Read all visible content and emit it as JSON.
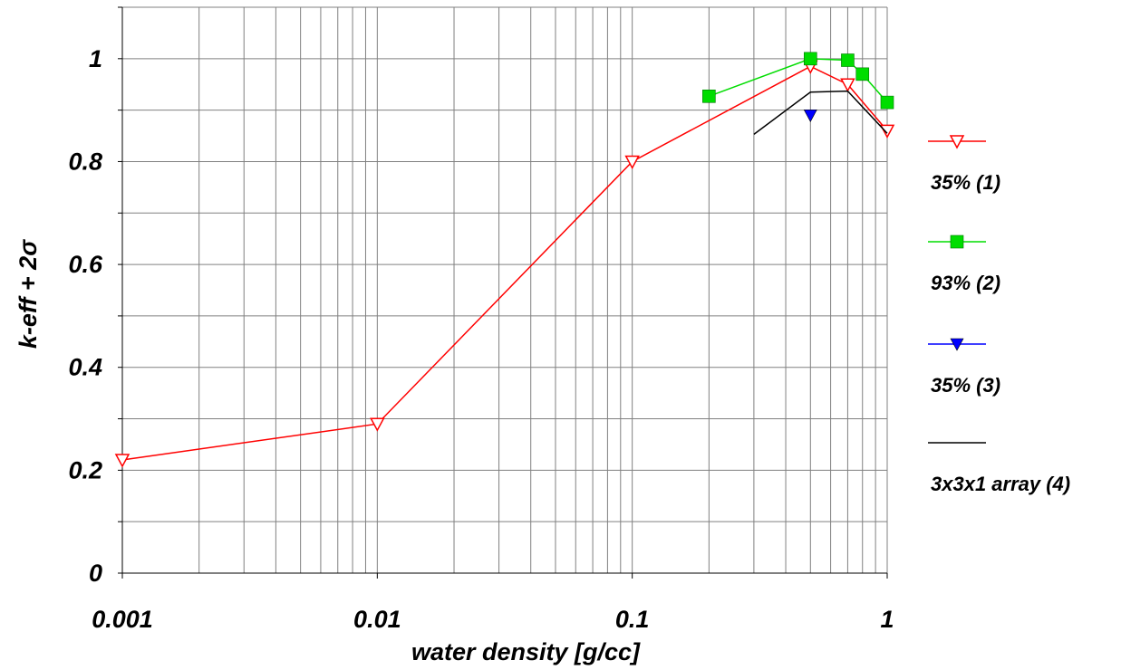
{
  "chart_data": {
    "type": "line",
    "xlabel": "water density [g/cc]",
    "ylabel": "k-eff + 2σ",
    "x_scale": "log",
    "xlim": [
      0.001,
      1
    ],
    "ylim": [
      0,
      1.1
    ],
    "grid": true,
    "legend_position": "right",
    "x_ticks": [
      {
        "value": 0.001,
        "label": "0.001"
      },
      {
        "value": 0.01,
        "label": "0.01"
      },
      {
        "value": 0.1,
        "label": "0.1"
      },
      {
        "value": 1,
        "label": "1"
      }
    ],
    "y_ticks": [
      {
        "value": 0,
        "label": "0"
      },
      {
        "value": 0.2,
        "label": "0.2"
      },
      {
        "value": 0.4,
        "label": "0.4"
      },
      {
        "value": 0.6,
        "label": "0.6"
      },
      {
        "value": 0.8,
        "label": "0.8"
      },
      {
        "value": 1,
        "label": "1"
      }
    ],
    "series": [
      {
        "name": "35% (1)",
        "color": "#ff0000",
        "marker": "triangle-down-open",
        "points": [
          {
            "x": 0.001,
            "y": 0.22
          },
          {
            "x": 0.01,
            "y": 0.29
          },
          {
            "x": 0.1,
            "y": 0.8
          },
          {
            "x": 0.5,
            "y": 0.985
          },
          {
            "x": 0.7,
            "y": 0.95
          },
          {
            "x": 1.0,
            "y": 0.86
          }
        ]
      },
      {
        "name": "93% (2)",
        "color": "#00dd00",
        "marker": "square-filled",
        "points": [
          {
            "x": 0.2,
            "y": 0.927
          },
          {
            "x": 0.5,
            "y": 1.0
          },
          {
            "x": 0.7,
            "y": 0.997
          },
          {
            "x": 0.8,
            "y": 0.97
          },
          {
            "x": 1.0,
            "y": 0.915
          }
        ]
      },
      {
        "name": "35% (3)",
        "color": "#0000ff",
        "marker": "triangle-down-filled",
        "points": [
          {
            "x": 0.5,
            "y": 0.89
          }
        ]
      },
      {
        "name": "3x3x1 array (4)",
        "color": "#000000",
        "marker": "none",
        "points": [
          {
            "x": 0.3,
            "y": 0.853
          },
          {
            "x": 0.5,
            "y": 0.935
          },
          {
            "x": 0.7,
            "y": 0.937
          },
          {
            "x": 1.0,
            "y": 0.855
          }
        ]
      }
    ]
  }
}
